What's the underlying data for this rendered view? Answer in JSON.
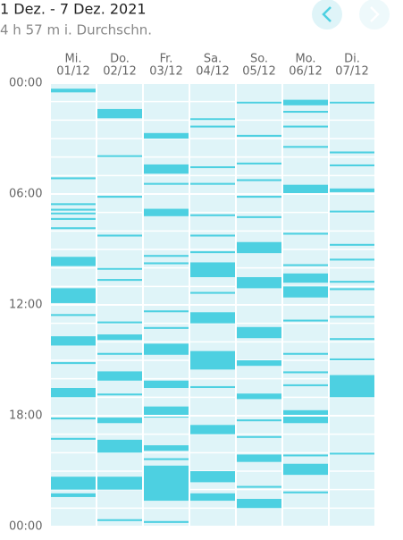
{
  "header": {
    "title": "1 Dez. - 7 Dez. 2021",
    "subtitle": "4 h 57 m i. Durchschn."
  },
  "chart_data": {
    "type": "timeline",
    "color": "#4dd0e1",
    "background": "#dff4f8",
    "ylim": [
      0,
      24
    ],
    "yticks": [
      {
        "value": 0,
        "label": "00:00"
      },
      {
        "value": 6,
        "label": "06:00"
      },
      {
        "value": 12,
        "label": "12:00"
      },
      {
        "value": 18,
        "label": "18:00"
      },
      {
        "value": 24,
        "label": "00:00"
      }
    ],
    "ygrid": [
      1,
      2,
      3,
      4,
      5,
      6,
      7,
      8,
      9,
      10,
      11,
      12,
      13,
      14,
      15,
      16,
      17,
      18,
      19,
      20,
      21,
      22,
      23
    ],
    "series": [
      {
        "day": "Mi.",
        "date": "01/12",
        "intervals": [
          [
            0.3,
            0.5
          ],
          [
            5.1,
            5.2
          ],
          [
            6.5,
            6.6
          ],
          [
            6.8,
            6.9
          ],
          [
            7.0,
            7.1
          ],
          [
            7.3,
            7.4
          ],
          [
            7.8,
            7.9
          ],
          [
            9.4,
            9.9
          ],
          [
            11.1,
            11.9
          ],
          [
            12.5,
            12.6
          ],
          [
            13.7,
            14.2
          ],
          [
            15.1,
            15.2
          ],
          [
            16.5,
            17.0
          ],
          [
            18.1,
            18.2
          ],
          [
            19.2,
            19.3
          ],
          [
            21.3,
            22.0
          ],
          [
            22.2,
            22.4
          ]
        ]
      },
      {
        "day": "Do.",
        "date": "02/12",
        "intervals": [
          [
            1.4,
            1.9
          ],
          [
            3.9,
            4.0
          ],
          [
            6.1,
            6.2
          ],
          [
            8.2,
            8.3
          ],
          [
            10.0,
            10.1
          ],
          [
            10.6,
            10.7
          ],
          [
            12.9,
            13.0
          ],
          [
            13.6,
            13.9
          ],
          [
            14.6,
            14.7
          ],
          [
            15.6,
            16.1
          ],
          [
            16.8,
            16.9
          ],
          [
            18.1,
            18.4
          ],
          [
            19.3,
            20.0
          ],
          [
            21.3,
            22.0
          ],
          [
            23.6,
            23.7
          ]
        ]
      },
      {
        "day": "Fr.",
        "date": "03/12",
        "intervals": [
          [
            2.7,
            3.0
          ],
          [
            4.4,
            4.9
          ],
          [
            5.4,
            5.5
          ],
          [
            6.8,
            7.2
          ],
          [
            9.3,
            9.4
          ],
          [
            9.7,
            9.8
          ],
          [
            12.3,
            12.4
          ],
          [
            13.2,
            13.3
          ],
          [
            14.1,
            14.7
          ],
          [
            16.1,
            16.5
          ],
          [
            17.5,
            18.1
          ],
          [
            19.6,
            19.9
          ],
          [
            20.3,
            20.4
          ],
          [
            20.7,
            22.6
          ],
          [
            23.7,
            23.8
          ]
        ]
      },
      {
        "day": "Sa.",
        "date": "04/12",
        "intervals": [
          [
            1.9,
            2.0
          ],
          [
            2.3,
            2.4
          ],
          [
            4.5,
            4.6
          ],
          [
            5.4,
            5.5
          ],
          [
            7.1,
            7.2
          ],
          [
            8.2,
            8.3
          ],
          [
            9.1,
            9.2
          ],
          [
            9.7,
            10.5
          ],
          [
            11.3,
            11.4
          ],
          [
            12.4,
            13.0
          ],
          [
            14.5,
            15.5
          ],
          [
            16.4,
            16.5
          ],
          [
            18.5,
            19.0
          ],
          [
            21.0,
            21.6
          ],
          [
            22.2,
            22.6
          ]
        ]
      },
      {
        "day": "So.",
        "date": "05/12",
        "intervals": [
          [
            1.0,
            1.1
          ],
          [
            2.8,
            2.9
          ],
          [
            4.3,
            4.4
          ],
          [
            5.2,
            5.3
          ],
          [
            6.1,
            6.2
          ],
          [
            7.2,
            7.3
          ],
          [
            8.6,
            9.2
          ],
          [
            10.5,
            11.1
          ],
          [
            13.2,
            13.8
          ],
          [
            15.0,
            15.3
          ],
          [
            16.8,
            17.1
          ],
          [
            18.2,
            18.3
          ],
          [
            19.1,
            19.2
          ],
          [
            20.1,
            20.5
          ],
          [
            21.8,
            21.9
          ],
          [
            22.5,
            23.0
          ]
        ]
      },
      {
        "day": "Mo.",
        "date": "06/12",
        "intervals": [
          [
            0.9,
            1.2
          ],
          [
            1.5,
            1.6
          ],
          [
            2.3,
            2.4
          ],
          [
            3.4,
            3.5
          ],
          [
            5.5,
            6.0
          ],
          [
            8.1,
            8.2
          ],
          [
            9.8,
            9.9
          ],
          [
            10.3,
            10.8
          ],
          [
            11.0,
            11.6
          ],
          [
            12.8,
            12.9
          ],
          [
            14.6,
            14.7
          ],
          [
            15.6,
            15.7
          ],
          [
            16.3,
            16.4
          ],
          [
            17.7,
            18.4
          ],
          [
            20.1,
            20.2
          ],
          [
            20.6,
            21.2
          ],
          [
            22.1,
            22.2
          ]
        ]
      },
      {
        "day": "Di.",
        "date": "07/12",
        "intervals": [
          [
            1.0,
            1.1
          ],
          [
            3.7,
            3.8
          ],
          [
            4.4,
            4.5
          ],
          [
            5.7,
            5.9
          ],
          [
            6.9,
            7.0
          ],
          [
            8.7,
            8.8
          ],
          [
            9.5,
            9.6
          ],
          [
            10.7,
            10.8
          ],
          [
            11.1,
            11.2
          ],
          [
            12.6,
            12.7
          ],
          [
            13.8,
            13.9
          ],
          [
            14.9,
            15.0
          ],
          [
            15.8,
            17.0
          ],
          [
            20.0,
            20.1
          ]
        ]
      }
    ]
  }
}
